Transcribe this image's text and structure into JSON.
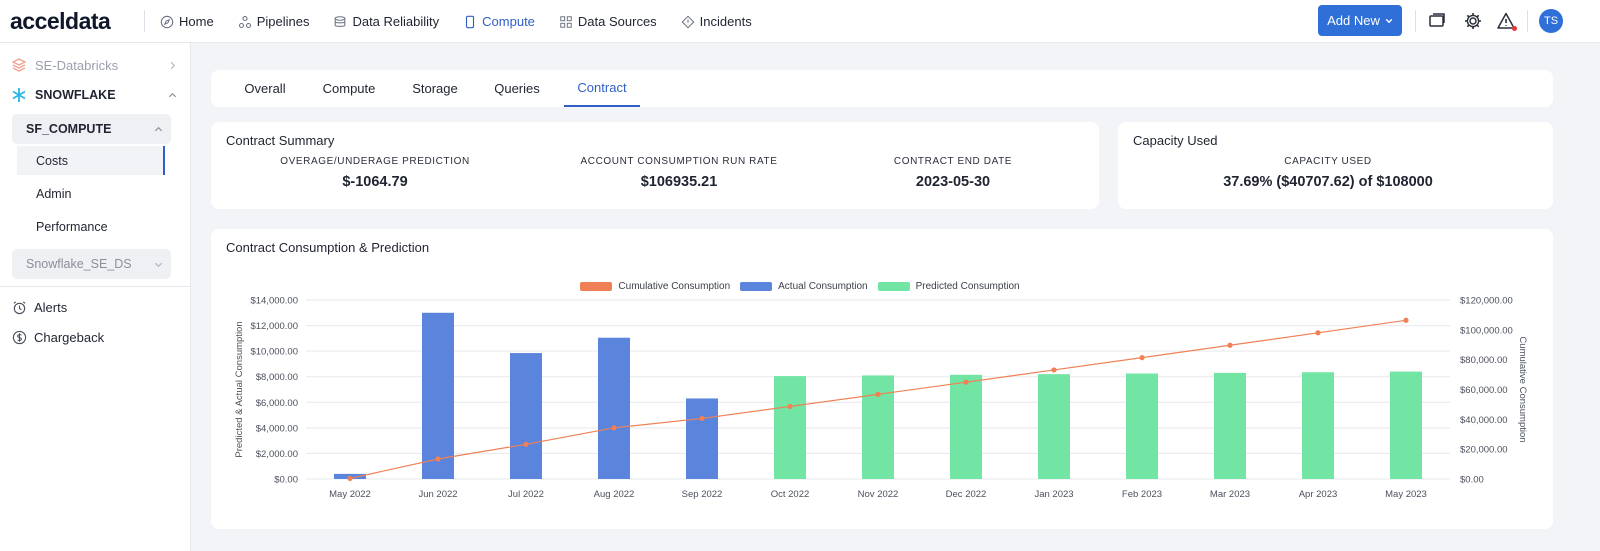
{
  "app": {
    "logo": "acceldata"
  },
  "nav": {
    "items": [
      {
        "label": "Home",
        "icon": "compass-icon"
      },
      {
        "label": "Pipelines",
        "icon": "pipeline-icon"
      },
      {
        "label": "Data Reliability",
        "icon": "database-icon"
      },
      {
        "label": "Compute",
        "icon": "compute-icon"
      },
      {
        "label": "Data Sources",
        "icon": "datasource-icon"
      },
      {
        "label": "Incidents",
        "icon": "incident-icon"
      }
    ],
    "add_new": "Add New",
    "user_initials": "TS"
  },
  "sidebar": {
    "databricks": "SE-Databricks",
    "snowflake": "SNOWFLAKE",
    "sf_compute": "SF_COMPUTE",
    "sub_items": [
      "Costs",
      "Admin",
      "Performance"
    ],
    "snowflake_se_ds": "Snowflake_SE_DS",
    "alerts": "Alerts",
    "chargeback": "Chargeback"
  },
  "tabs": [
    "Overall",
    "Compute",
    "Storage",
    "Queries",
    "Contract"
  ],
  "contract_summary": {
    "title": "Contract Summary",
    "metrics": [
      {
        "label": "OVERAGE/UNDERAGE PREDICTION",
        "value": "$-1064.79"
      },
      {
        "label": "ACCOUNT CONSUMPTION RUN RATE",
        "value": "$106935.21"
      },
      {
        "label": "CONTRACT END DATE",
        "value": "2023-05-30"
      }
    ]
  },
  "capacity_used": {
    "title": "Capacity Used",
    "label": "CAPACITY USED",
    "value": "37.69% ($40707.62) of $108000"
  },
  "consumption_card": {
    "title": "Contract Consumption & Prediction"
  },
  "colors": {
    "accent": "#2f6fd8",
    "actual": "#5b85dd",
    "predicted": "#72e4a3",
    "cumulative": "#f08055"
  },
  "chart_data": {
    "type": "bar",
    "title": "Contract Consumption & Prediction",
    "categories": [
      "May 2022",
      "Jun 2022",
      "Jul 2022",
      "Aug 2022",
      "Sep 2022",
      "Oct 2022",
      "Nov 2022",
      "Dec 2022",
      "Jan 2023",
      "Feb 2023",
      "Mar 2023",
      "Apr 2023",
      "May 2023"
    ],
    "series": [
      {
        "name": "Actual Consumption",
        "type": "bar",
        "axis": "left",
        "values": [
          400,
          13000,
          9850,
          11050,
          6300,
          null,
          null,
          null,
          null,
          null,
          null,
          null,
          null
        ]
      },
      {
        "name": "Predicted Consumption",
        "type": "bar",
        "axis": "left",
        "values": [
          null,
          null,
          null,
          null,
          null,
          8050,
          8100,
          8150,
          8200,
          8250,
          8300,
          8350,
          8400
        ]
      },
      {
        "name": "Cumulative Consumption",
        "type": "line",
        "axis": "right",
        "values": [
          400,
          13400,
          23250,
          34300,
          40600,
          48650,
          56750,
          64900,
          73100,
          81350,
          89650,
          98000,
          106400
        ]
      }
    ],
    "legend": [
      "Cumulative Consumption",
      "Actual Consumption",
      "Predicted Consumption"
    ],
    "ylabel": "Predicted & Actual Consumption",
    "y2label": "Cumulative Consumption",
    "ylim": [
      0,
      14000
    ],
    "y2lim": [
      0,
      120000
    ],
    "yticks": [
      "$0.00",
      "$2,000.00",
      "$4,000.00",
      "$6,000.00",
      "$8,000.00",
      "$10,000.00",
      "$12,000.00",
      "$14,000.00"
    ],
    "y2ticks": [
      "$0.00",
      "$20,000.00",
      "$40,000.00",
      "$60,000.00",
      "$80,000.00",
      "$100,000.00",
      "$120,000.00"
    ]
  }
}
